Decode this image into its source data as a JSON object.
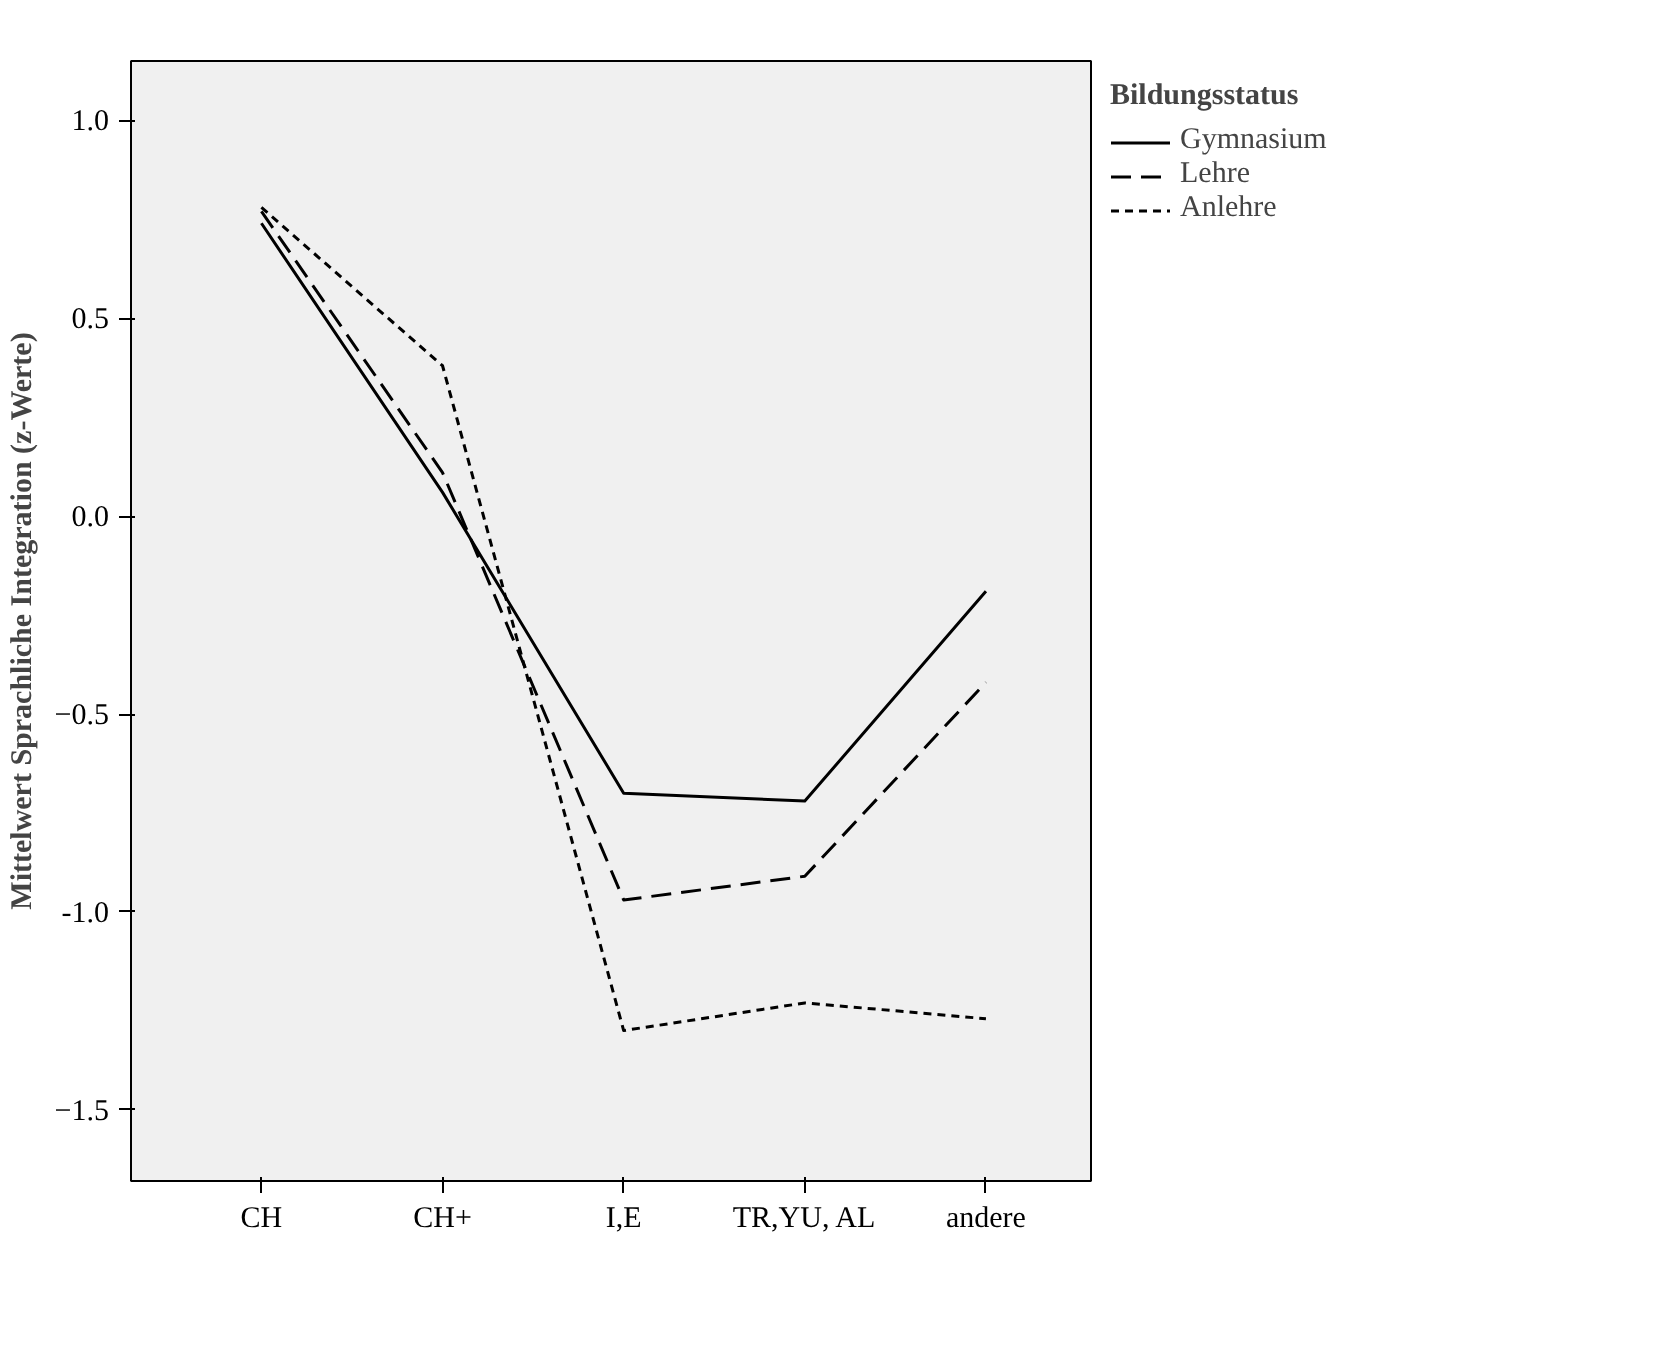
{
  "chart_data": {
    "type": "line",
    "ylabel": "Mittelwert Sprachliche Integration (z-Werte)",
    "legend_title": "Bildungsstatus",
    "legend": "right",
    "categories": [
      "CH",
      "CH+",
      "I,E",
      "TR,YU, AL",
      "andere"
    ],
    "ylim": [
      -1.68,
      1.15
    ],
    "yticks": [
      {
        "value": 1.0,
        "label": "1.0"
      },
      0.5,
      {
        "value": 0.0,
        "label": "0.0"
      },
      -0.5,
      {
        "value": -1.0,
        "label": "-1.0"
      },
      -1.5
    ],
    "marker": "none",
    "grid": false,
    "series": [
      {
        "name": "Gymnasium",
        "color": "#000000",
        "line_style": "solid",
        "values": [
          0.74,
          0.06,
          -0.7,
          -0.72,
          -0.19
        ]
      },
      {
        "name": "Lehre",
        "color": "#000000",
        "line_style": "dashed",
        "values": [
          0.77,
          0.11,
          -0.97,
          -0.91,
          -0.42
        ]
      },
      {
        "name": "Anlehre",
        "color": "#000000",
        "line_style": "dotted",
        "values": [
          0.78,
          0.38,
          -1.3,
          -1.23,
          -1.27
        ]
      }
    ]
  }
}
